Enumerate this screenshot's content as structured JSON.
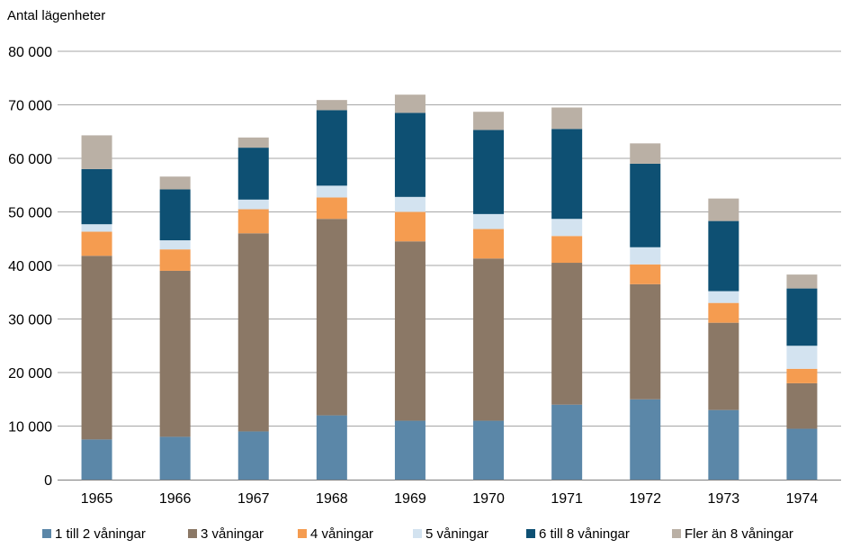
{
  "chart_data": {
    "type": "bar",
    "stacked": true,
    "ylabel": "Antal lägenheter",
    "ylim": [
      0,
      80000
    ],
    "y_ticks": [
      0,
      10000,
      20000,
      30000,
      40000,
      50000,
      60000,
      70000,
      80000
    ],
    "y_tick_labels": [
      "0",
      "10 000",
      "20 000",
      "30 000",
      "40 000",
      "50 000",
      "60 000",
      "70 000",
      "80 000"
    ],
    "grid": true,
    "legend_position": "bottom",
    "categories": [
      "1965",
      "1966",
      "1967",
      "1968",
      "1969",
      "1970",
      "1971",
      "1972",
      "1973",
      "1974"
    ],
    "series": [
      {
        "name": "1 till 2 våningar",
        "color": "#5b87a8",
        "values": [
          7500,
          8000,
          9000,
          12000,
          11000,
          11000,
          14000,
          15000,
          13000,
          9500
        ]
      },
      {
        "name": "3 våningar",
        "color": "#8b7866",
        "values": [
          34300,
          31000,
          37000,
          36700,
          33500,
          30300,
          26500,
          21500,
          16300,
          8500
        ]
      },
      {
        "name": "4 våningar",
        "color": "#f59c50",
        "values": [
          4500,
          4000,
          4500,
          4000,
          5500,
          5500,
          5000,
          3700,
          3700,
          2700
        ]
      },
      {
        "name": "5 våningar",
        "color": "#d3e3f0",
        "values": [
          1400,
          1700,
          1800,
          2200,
          2800,
          2800,
          3200,
          3200,
          2200,
          4300
        ]
      },
      {
        "name": "6 till 8 våningar",
        "color": "#0e5073",
        "values": [
          10300,
          9500,
          9700,
          14100,
          15700,
          15700,
          16800,
          15600,
          13100,
          10700
        ]
      },
      {
        "name": "Fler än 8 våningar",
        "color": "#bab0a5",
        "values": [
          6300,
          2400,
          1900,
          1900,
          3400,
          3400,
          4000,
          3800,
          4200,
          2600
        ]
      }
    ]
  }
}
